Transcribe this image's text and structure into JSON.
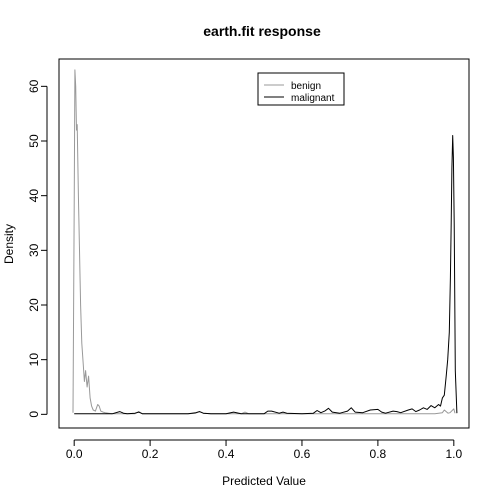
{
  "chart_data": {
    "type": "line",
    "title": "earth.fit response",
    "xlabel": "Predicted Value",
    "ylabel": "Density",
    "xlim": [
      -0.04,
      1.04
    ],
    "ylim": [
      -2.5,
      65
    ],
    "x_ticks": [
      "0.0",
      "0.2",
      "0.4",
      "0.6",
      "0.8",
      "1.0"
    ],
    "x_tick_values": [
      0,
      0.2,
      0.4,
      0.6,
      0.8,
      1.0
    ],
    "y_ticks": [
      "0",
      "10",
      "20",
      "30",
      "40",
      "50",
      "60"
    ],
    "y_tick_values": [
      0,
      10,
      20,
      30,
      40,
      50,
      60
    ],
    "grid": false,
    "legend_position": "top-right",
    "series": [
      {
        "name": "benign",
        "color": "#999999",
        "x": [
          -0.003,
          0.0,
          0.002,
          0.004,
          0.006,
          0.008,
          0.011,
          0.014,
          0.017,
          0.02,
          0.024,
          0.027,
          0.03,
          0.034,
          0.038,
          0.042,
          0.046,
          0.05,
          0.056,
          0.062,
          0.066,
          0.07,
          0.076,
          0.082,
          0.09,
          0.1,
          0.12,
          0.14,
          0.16,
          0.17,
          0.18,
          0.2,
          0.25,
          0.3,
          0.32,
          0.33,
          0.34,
          0.36,
          0.4,
          0.44,
          0.45,
          0.46,
          0.5,
          0.55,
          0.6,
          0.65,
          0.7,
          0.75,
          0.8,
          0.85,
          0.9,
          0.95,
          0.97,
          0.975,
          0.98,
          0.985,
          0.99,
          1.0,
          1.003
        ],
        "y": [
          0.3,
          38,
          63,
          60,
          52,
          53,
          40,
          30,
          20,
          13,
          9,
          6,
          8,
          5,
          7,
          3,
          1.5,
          0.8,
          0.6,
          1.8,
          1.5,
          0.6,
          0.4,
          0.3,
          0.2,
          0.1,
          0.1,
          0.1,
          0.1,
          0.5,
          0.1,
          0.1,
          0.1,
          0.1,
          0.2,
          0.5,
          0.2,
          0.1,
          0.1,
          0.1,
          0.4,
          0.1,
          0.1,
          0.1,
          0.1,
          0.1,
          0.1,
          0.1,
          0.1,
          0.1,
          0.1,
          0.1,
          0.3,
          0.8,
          0.5,
          0.2,
          0.3,
          1.0,
          0.2
        ]
      },
      {
        "name": "malignant",
        "color": "#000000",
        "x": [
          0.0,
          0.05,
          0.1,
          0.12,
          0.13,
          0.14,
          0.16,
          0.17,
          0.18,
          0.2,
          0.3,
          0.32,
          0.33,
          0.34,
          0.36,
          0.4,
          0.42,
          0.44,
          0.5,
          0.51,
          0.52,
          0.54,
          0.55,
          0.56,
          0.6,
          0.63,
          0.64,
          0.65,
          0.66,
          0.67,
          0.68,
          0.7,
          0.72,
          0.73,
          0.74,
          0.76,
          0.78,
          0.8,
          0.81,
          0.82,
          0.84,
          0.85,
          0.86,
          0.88,
          0.89,
          0.9,
          0.91,
          0.92,
          0.93,
          0.94,
          0.95,
          0.96,
          0.965,
          0.97,
          0.975,
          0.98,
          0.984,
          0.988,
          0.991,
          0.993,
          0.995,
          0.997,
          0.999,
          1.001,
          1.004,
          1.008
        ],
        "y": [
          0.1,
          0.1,
          0.1,
          0.5,
          0.2,
          0.1,
          0.2,
          0.4,
          0.1,
          0.1,
          0.1,
          0.3,
          0.5,
          0.2,
          0.1,
          0.1,
          0.4,
          0.1,
          0.1,
          0.6,
          0.6,
          0.2,
          0.4,
          0.2,
          0.1,
          0.2,
          0.7,
          0.3,
          0.6,
          1.1,
          0.4,
          0.2,
          0.6,
          1.2,
          0.4,
          0.3,
          0.8,
          0.9,
          0.4,
          0.2,
          0.6,
          0.5,
          0.3,
          0.8,
          1.0,
          0.5,
          0.8,
          1.2,
          0.9,
          1.6,
          1.2,
          1.8,
          1.5,
          3.0,
          3.5,
          7.0,
          10.0,
          15.0,
          25.0,
          35.0,
          45.0,
          51.0,
          47.0,
          35.0,
          8.0,
          0.2
        ]
      }
    ]
  }
}
